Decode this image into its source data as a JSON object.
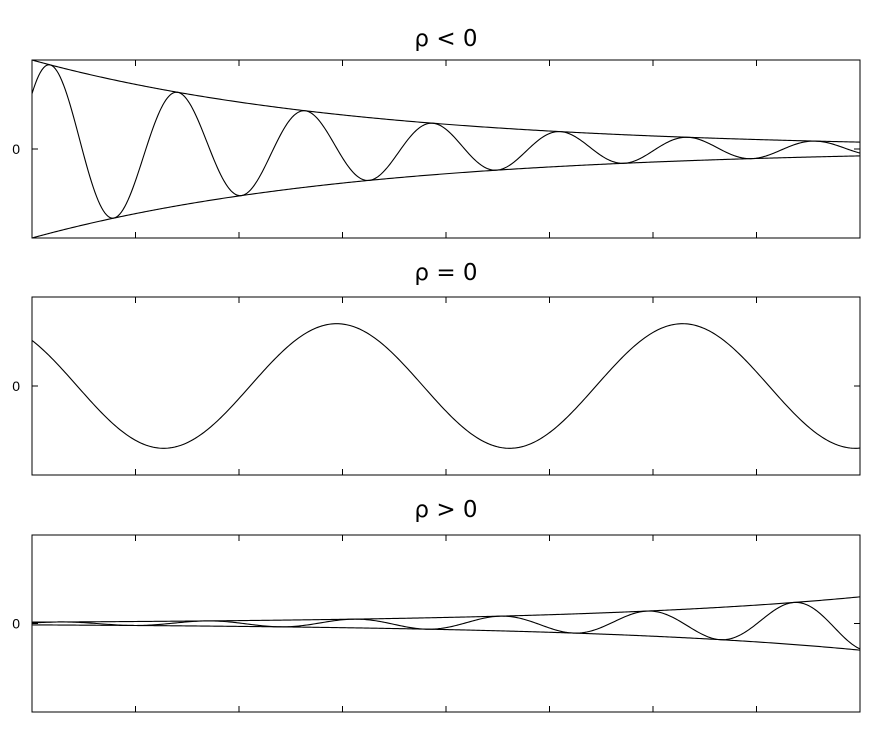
{
  "chart_data": [
    {
      "type": "line",
      "title": "ρ < 0",
      "ylabel": "",
      "xlabel": "",
      "ytick_labels": [
        "0"
      ],
      "x_tick_count": 7,
      "xlim": [
        0,
        8
      ],
      "ylim": [
        -1.05,
        1.05
      ],
      "grid": false,
      "series": [
        {
          "kind": "envelope_upper",
          "rho": -0.32,
          "amplitude": 1.05,
          "omega": 0,
          "phase": 0
        },
        {
          "kind": "envelope_lower",
          "rho": -0.32,
          "amplitude": -1.05,
          "omega": 0,
          "phase": 0
        },
        {
          "kind": "oscillation",
          "rho": -0.32,
          "amplitude": 1.05,
          "omega": 5.1,
          "phase": -0.9
        }
      ]
    },
    {
      "type": "line",
      "title": "ρ = 0",
      "ylabel": "",
      "xlabel": "",
      "ytick_labels": [
        "0"
      ],
      "x_tick_count": 7,
      "xlim": [
        0,
        8
      ],
      "ylim": [
        -1.0,
        1.0
      ],
      "grid": false,
      "series": [
        {
          "kind": "oscillation",
          "rho": 0,
          "amplitude": 0.7,
          "omega": 1.88,
          "phase": 0.75
        }
      ]
    },
    {
      "type": "line",
      "title": "ρ > 0",
      "ylabel": "",
      "xlabel": "",
      "ytick_labels": [
        "0"
      ],
      "x_tick_count": 7,
      "xlim": [
        0,
        8
      ],
      "ylim": [
        -1.0,
        1.0
      ],
      "grid": false,
      "series": [
        {
          "kind": "envelope_upper",
          "rho": 0.37,
          "amplitude": 0.0156,
          "omega": 0,
          "phase": 0
        },
        {
          "kind": "envelope_lower",
          "rho": 0.37,
          "amplitude": -0.0156,
          "omega": 0,
          "phase": 0
        },
        {
          "kind": "oscillation",
          "rho": 0.37,
          "amplitude": 0.0156,
          "omega": 4.43,
          "phase": -1.19
        }
      ]
    }
  ]
}
